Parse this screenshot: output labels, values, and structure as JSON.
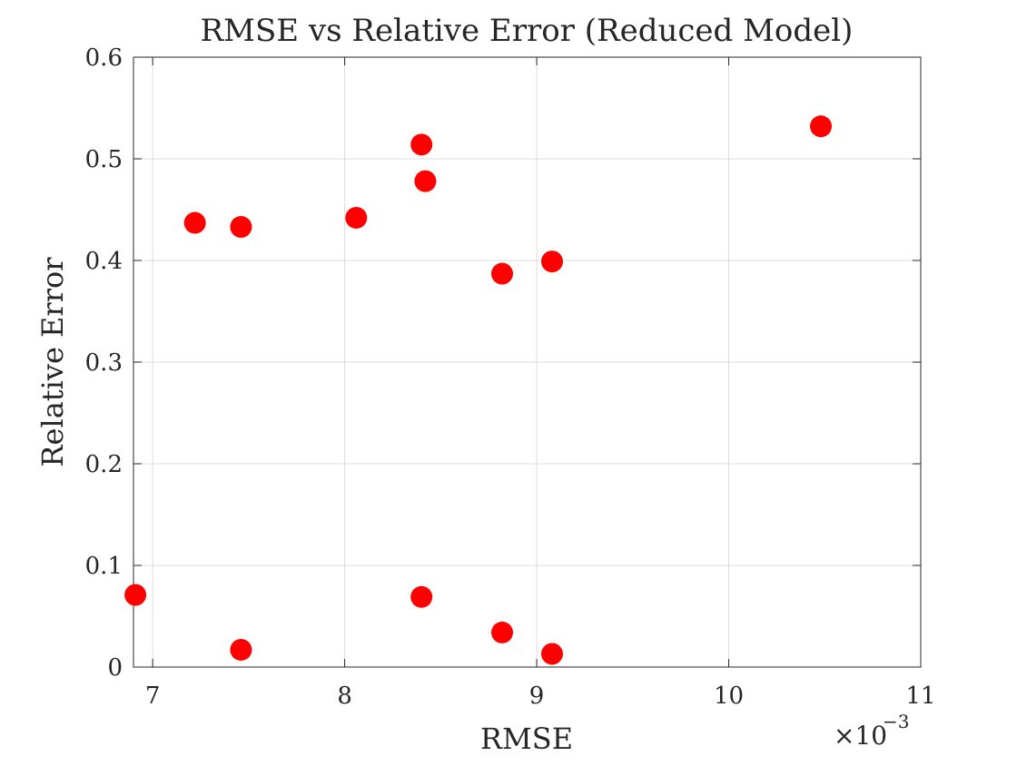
{
  "chart_data": {
    "type": "scatter",
    "title": "RMSE vs Relative Error (Reduced Model)",
    "xlabel": "RMSE",
    "ylabel": "Relative Error",
    "x_scale_exponent": {
      "base": "×10",
      "power": "−3"
    },
    "xlim": [
      6.9,
      11
    ],
    "ylim": [
      0,
      0.6
    ],
    "x_ticks": [
      7,
      8,
      9,
      10,
      11
    ],
    "x_tick_labels": [
      "7",
      "8",
      "9",
      "10",
      "11"
    ],
    "y_ticks": [
      0,
      0.1,
      0.2,
      0.3,
      0.4,
      0.5,
      0.6
    ],
    "y_tick_labels": [
      "0",
      "0.1",
      "0.2",
      "0.3",
      "0.4",
      "0.5",
      "0.6"
    ],
    "grid": true,
    "marker_color": "#ff0000",
    "series": [
      {
        "points": [
          {
            "x": 6.91,
            "y": 0.071
          },
          {
            "x": 7.22,
            "y": 0.437
          },
          {
            "x": 7.46,
            "y": 0.433
          },
          {
            "x": 7.46,
            "y": 0.017
          },
          {
            "x": 8.06,
            "y": 0.442
          },
          {
            "x": 8.4,
            "y": 0.514
          },
          {
            "x": 8.42,
            "y": 0.478
          },
          {
            "x": 8.4,
            "y": 0.069
          },
          {
            "x": 8.82,
            "y": 0.387
          },
          {
            "x": 8.82,
            "y": 0.034
          },
          {
            "x": 9.08,
            "y": 0.399
          },
          {
            "x": 9.08,
            "y": 0.013
          },
          {
            "x": 10.48,
            "y": 0.532
          }
        ]
      }
    ]
  }
}
